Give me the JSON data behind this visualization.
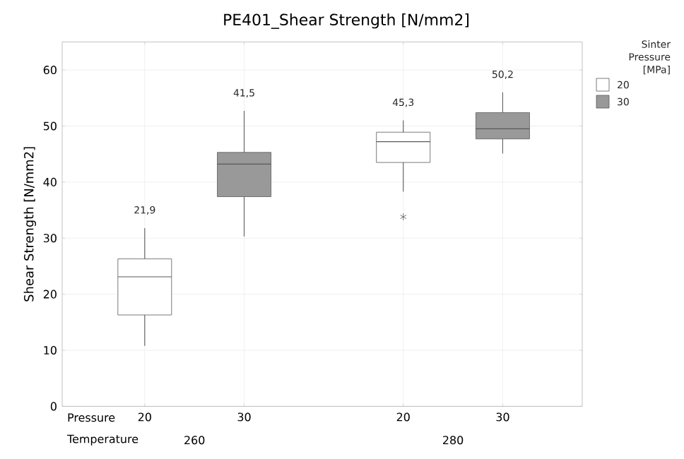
{
  "chart_data": {
    "type": "box",
    "title": "PE401_Shear Strength [N/mm2]",
    "ylabel": "Shear Strength [N/mm2]",
    "legend_title": "Sinter Pressure [MPa]",
    "categories": [
      "20",
      "30",
      "20",
      "30"
    ],
    "annotations": [
      "Pressure",
      "Temperature",
      "260",
      "280"
    ],
    "ylim": [
      0,
      65
    ],
    "yticks": [
      0,
      10,
      20,
      30,
      40,
      50,
      60
    ],
    "grid": true,
    "legend": "top right",
    "series": [
      {
        "name": "20",
        "color": "#ffffff",
        "boxes": [
          {
            "low": 10.8,
            "q1": 16.3,
            "median": 23.1,
            "q3": 26.3,
            "high": 31.8
          },
          null,
          {
            "low": 38.3,
            "q1": 43.5,
            "median": 47.2,
            "q3": 48.9,
            "high": 51.0,
            "outliers": [
              33.8
            ]
          },
          null
        ],
        "value_labels": [
          "21,9",
          null,
          "45,3",
          null
        ]
      },
      {
        "name": "30",
        "color": "#999999",
        "boxes": [
          null,
          {
            "low": 30.3,
            "q1": 37.4,
            "median": 43.2,
            "q3": 45.3,
            "high": 52.7
          },
          null,
          {
            "low": 45.1,
            "q1": 47.7,
            "median": 49.5,
            "q3": 52.4,
            "high": 56.0
          }
        ],
        "value_labels": [
          null,
          "41,5",
          null,
          "50,2"
        ]
      }
    ]
  }
}
